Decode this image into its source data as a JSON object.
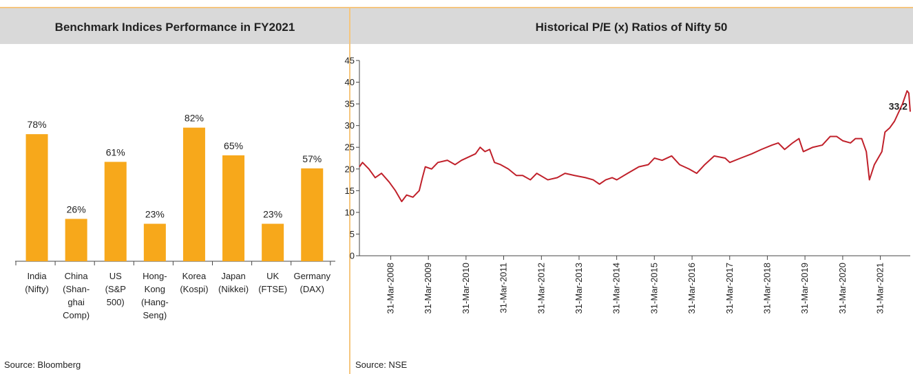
{
  "chart_data": [
    {
      "type": "bar",
      "title": "Benchmark Indices Performance in FY2021",
      "categories": [
        "India\n(Nifty)",
        "China\n(Shan-\nghai\nComp)",
        "US\n(S&P\n500)",
        "Hong-\nKong\n(Hang-\nSeng)",
        "Korea\n(Kospi)",
        "Japan\n(Nikkei)",
        "UK\n(FTSE)",
        "Germany\n(DAX)"
      ],
      "values": [
        78,
        26,
        61,
        23,
        82,
        65,
        23,
        57
      ],
      "value_labels": [
        "78%",
        "26%",
        "61%",
        "23%",
        "82%",
        "65%",
        "23%",
        "57%"
      ],
      "color": "#f7a81b",
      "source": "Source: Bloomberg"
    },
    {
      "type": "line",
      "title": "Historical P/E (x) Ratios of Nifty 50",
      "x": [
        "2007-06-01",
        "2007-07-01",
        "2007-09-01",
        "2007-11-01",
        "2008-01-01",
        "2008-03-15",
        "2008-05-15",
        "2008-07-15",
        "2008-09-01",
        "2008-11-01",
        "2009-01-01",
        "2009-02-01",
        "2009-03-01",
        "2009-05-01",
        "2009-07-01",
        "2009-10-01",
        "2009-12-15",
        "2010-02-15",
        "2010-07-01",
        "2010-08-15",
        "2010-10-01",
        "2010-11-15",
        "2011-01-01",
        "2011-03-01",
        "2011-05-15",
        "2011-08-01",
        "2011-10-01",
        "2011-12-15",
        "2012-02-15",
        "2012-06-01",
        "2012-09-01",
        "2012-11-15",
        "2013-02-15",
        "2013-06-01",
        "2013-08-15",
        "2013-10-15",
        "2013-12-15",
        "2014-02-15",
        "2014-04-01",
        "2014-07-15",
        "2014-11-01",
        "2015-02-01",
        "2015-04-01",
        "2015-06-15",
        "2015-09-15",
        "2015-12-01",
        "2016-03-01",
        "2016-05-15",
        "2016-08-01",
        "2016-11-01",
        "2017-02-15",
        "2017-04-01",
        "2017-07-15",
        "2017-11-01",
        "2018-02-01",
        "2018-05-15",
        "2018-07-15",
        "2018-09-15",
        "2018-12-01",
        "2019-02-01",
        "2019-03-15",
        "2019-06-15",
        "2019-09-15",
        "2019-12-01",
        "2020-02-01",
        "2020-04-01",
        "2020-06-15",
        "2020-08-01",
        "2020-10-01",
        "2020-11-15",
        "2020-12-15",
        "2021-02-01",
        "2021-04-15",
        "2021-05-15",
        "2021-07-01",
        "2021-08-15",
        "2021-11-01",
        "2021-12-15",
        "2022-01-01",
        "2022-01-15"
      ],
      "series": [
        {
          "color": "#c0202a",
          "values": [
            20.5,
            21.5,
            20,
            18,
            19,
            17,
            15,
            12.5,
            14,
            13.5,
            15,
            18,
            20.5,
            20,
            21.5,
            22,
            21,
            22,
            23.5,
            25,
            24,
            24.5,
            21.5,
            21,
            20,
            18.5,
            18.5,
            17.5,
            19,
            17.5,
            18,
            19,
            18.5,
            18,
            17.5,
            16.5,
            17.5,
            18,
            17.5,
            19,
            20.5,
            21,
            22.5,
            22,
            23,
            21,
            20,
            19,
            21,
            23,
            22.5,
            21.5,
            22.5,
            23.5,
            24.5,
            25.5,
            26,
            24.5,
            26,
            27,
            24,
            25,
            25.5,
            27.5,
            27.5,
            26.5,
            26,
            27,
            27,
            24,
            17.5,
            21,
            24,
            28.5,
            29.5,
            31,
            35,
            38,
            37.5,
            33.2
          ]
        }
      ],
      "xlim": [
        "2007-06-01",
        "2022-01-15"
      ],
      "xticks": [
        {
          "value": "2008-03-31",
          "label": "31-Mar-2008"
        },
        {
          "value": "2009-03-31",
          "label": "31-Mar-2009"
        },
        {
          "value": "2010-03-31",
          "label": "31-Mar-2010"
        },
        {
          "value": "2011-03-31",
          "label": "31-Mar-2011"
        },
        {
          "value": "2012-03-31",
          "label": "31-Mar-2012"
        },
        {
          "value": "2013-03-31",
          "label": "31-Mar-2013"
        },
        {
          "value": "2014-03-31",
          "label": "31-Mar-2014"
        },
        {
          "value": "2015-03-31",
          "label": "31-Mar-2015"
        },
        {
          "value": "2016-03-31",
          "label": "31-Mar-2016"
        },
        {
          "value": "2017-03-31",
          "label": "31-Mar-2017"
        },
        {
          "value": "2018-03-31",
          "label": "31-Mar-2018"
        },
        {
          "value": "2019-03-31",
          "label": "31-Mar-2019"
        },
        {
          "value": "2020-03-31",
          "label": "31-Mar-2020"
        },
        {
          "value": "2021-03-31",
          "label": "31-Mar-2021"
        }
      ],
      "ylim": [
        0,
        45
      ],
      "yticks": [
        0,
        5,
        10,
        15,
        20,
        25,
        30,
        35,
        40,
        45
      ],
      "annotation": "33.2",
      "source": "Source: NSE"
    }
  ]
}
